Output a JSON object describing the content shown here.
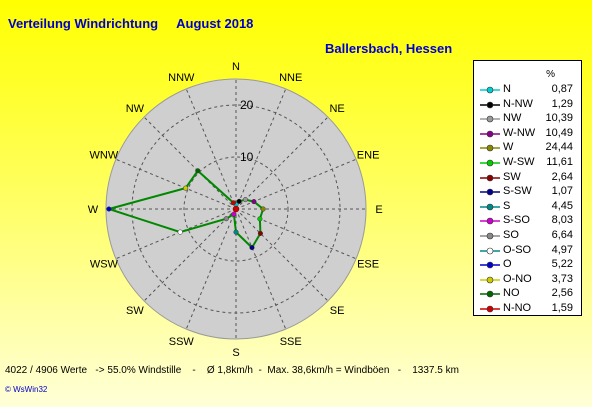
{
  "header": {
    "title": "Verteilung Windrichtung",
    "month": "August 2018",
    "location": "Ballersbach, Hessen"
  },
  "chart_data": {
    "type": "radar",
    "rings": [
      10,
      20
    ],
    "rmax": 25,
    "ring_labels": [
      "10",
      "20"
    ],
    "directions": [
      "N",
      "NNE",
      "NE",
      "ENE",
      "E",
      "ESE",
      "SE",
      "SSE",
      "S",
      "SSW",
      "SW",
      "WSW",
      "W",
      "WNW",
      "NW",
      "NNW"
    ],
    "series": [
      {
        "values": [
          0.87,
          1.59,
          2.56,
          3.73,
          5.22,
          4.97,
          6.64,
          8.03,
          4.45,
          1.07,
          2.64,
          11.61,
          24.44,
          10.49,
          10.39,
          1.29
        ],
        "color": "#008800"
      }
    ],
    "legend_unit": "%",
    "legend": [
      {
        "dir": "N",
        "val": "0,87",
        "color": "#00cccc"
      },
      {
        "dir": "N-NW",
        "val": "1,29",
        "color": "#000000"
      },
      {
        "dir": "NW",
        "val": "10,39",
        "color": "#999999"
      },
      {
        "dir": "W-NW",
        "val": "10,49",
        "color": "#880088"
      },
      {
        "dir": "W",
        "val": "24,44",
        "color": "#888800"
      },
      {
        "dir": "W-SW",
        "val": "11,61",
        "color": "#00cc00"
      },
      {
        "dir": "SW",
        "val": "2,64",
        "color": "#880000"
      },
      {
        "dir": "S-SW",
        "val": "1,07",
        "color": "#000088"
      },
      {
        "dir": "S",
        "val": "4,45",
        "color": "#008888"
      },
      {
        "dir": "S-SO",
        "val": "8,03",
        "color": "#cc00cc"
      },
      {
        "dir": "SO",
        "val": "6,64",
        "color": "#888888"
      },
      {
        "dir": "O-SO",
        "val": "4,97",
        "color": "#ffffff"
      },
      {
        "dir": "O",
        "val": "5,22",
        "color": "#0000cc"
      },
      {
        "dir": "O-NO",
        "val": "3,73",
        "color": "#cccc00"
      },
      {
        "dir": "NO",
        "val": "2,56",
        "color": "#006600"
      },
      {
        "dir": "N-NO",
        "val": "1,59",
        "color": "#cc0000"
      }
    ]
  },
  "footer": {
    "stats": "4022 / 4906 Werte   -> 55.0% Windstille    -    Ø 1,8km/h  -  Max. 38,6km/h = Windböen   -    1337.5 km",
    "credit": "© WsWin32"
  }
}
